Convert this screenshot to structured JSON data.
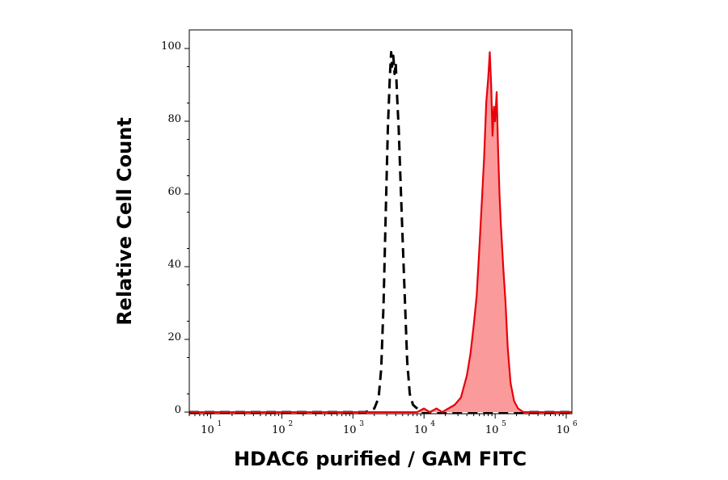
{
  "chart_data": {
    "type": "area",
    "title": "",
    "xlabel": "HDAC6 purified / GAM FITC",
    "ylabel": "Relative Cell Count",
    "xscale": "log",
    "xlim": [
      5,
      1200000
    ],
    "ylim": [
      0,
      100
    ],
    "grid": false,
    "legend": "none",
    "x_ticks": [
      {
        "value": 10,
        "base": "10",
        "exp": "1"
      },
      {
        "value": 100,
        "base": "10",
        "exp": "2"
      },
      {
        "value": 1000,
        "base": "10",
        "exp": "3"
      },
      {
        "value": 10000,
        "base": "10",
        "exp": "4"
      },
      {
        "value": 100000,
        "base": "10",
        "exp": "5"
      },
      {
        "value": 1000000,
        "base": "10",
        "exp": "6"
      }
    ],
    "y_ticks": [
      0,
      20,
      40,
      60,
      80,
      100
    ],
    "series": [
      {
        "style": "dashed",
        "color": "#000000",
        "fill": "none",
        "x": [
          5,
          1500,
          2000,
          2300,
          2500,
          2700,
          2900,
          3100,
          3300,
          3450,
          3550,
          3700,
          3850,
          4000,
          4200,
          4400,
          4700,
          5000,
          5400,
          5800,
          6300,
          7000,
          8000,
          9000,
          10000,
          1200000
        ],
        "y": [
          0,
          0,
          1,
          4,
          12,
          30,
          55,
          78,
          92,
          99,
          95,
          98,
          93,
          96,
          86,
          78,
          62,
          48,
          30,
          14,
          5,
          2,
          1,
          0,
          0,
          0
        ]
      },
      {
        "style": "solid",
        "color": "#e8000b",
        "fill": "#fb9a9a",
        "x": [
          5,
          8000,
          10000,
          12000,
          15000,
          18000,
          22000,
          27000,
          33000,
          40000,
          45000,
          50000,
          55000,
          60000,
          65000,
          70000,
          75000,
          80000,
          84000,
          88000,
          92000,
          96000,
          100000,
          105000,
          110000,
          115000,
          120000,
          130000,
          140000,
          150000,
          165000,
          185000,
          210000,
          250000,
          300000,
          1200000
        ],
        "y": [
          0,
          0,
          1,
          0,
          1,
          0,
          1,
          2,
          4,
          10,
          16,
          24,
          32,
          45,
          58,
          70,
          85,
          92,
          99,
          90,
          76,
          84,
          80,
          88,
          72,
          60,
          52,
          40,
          30,
          18,
          8,
          3,
          1,
          0,
          0,
          0
        ]
      }
    ]
  }
}
